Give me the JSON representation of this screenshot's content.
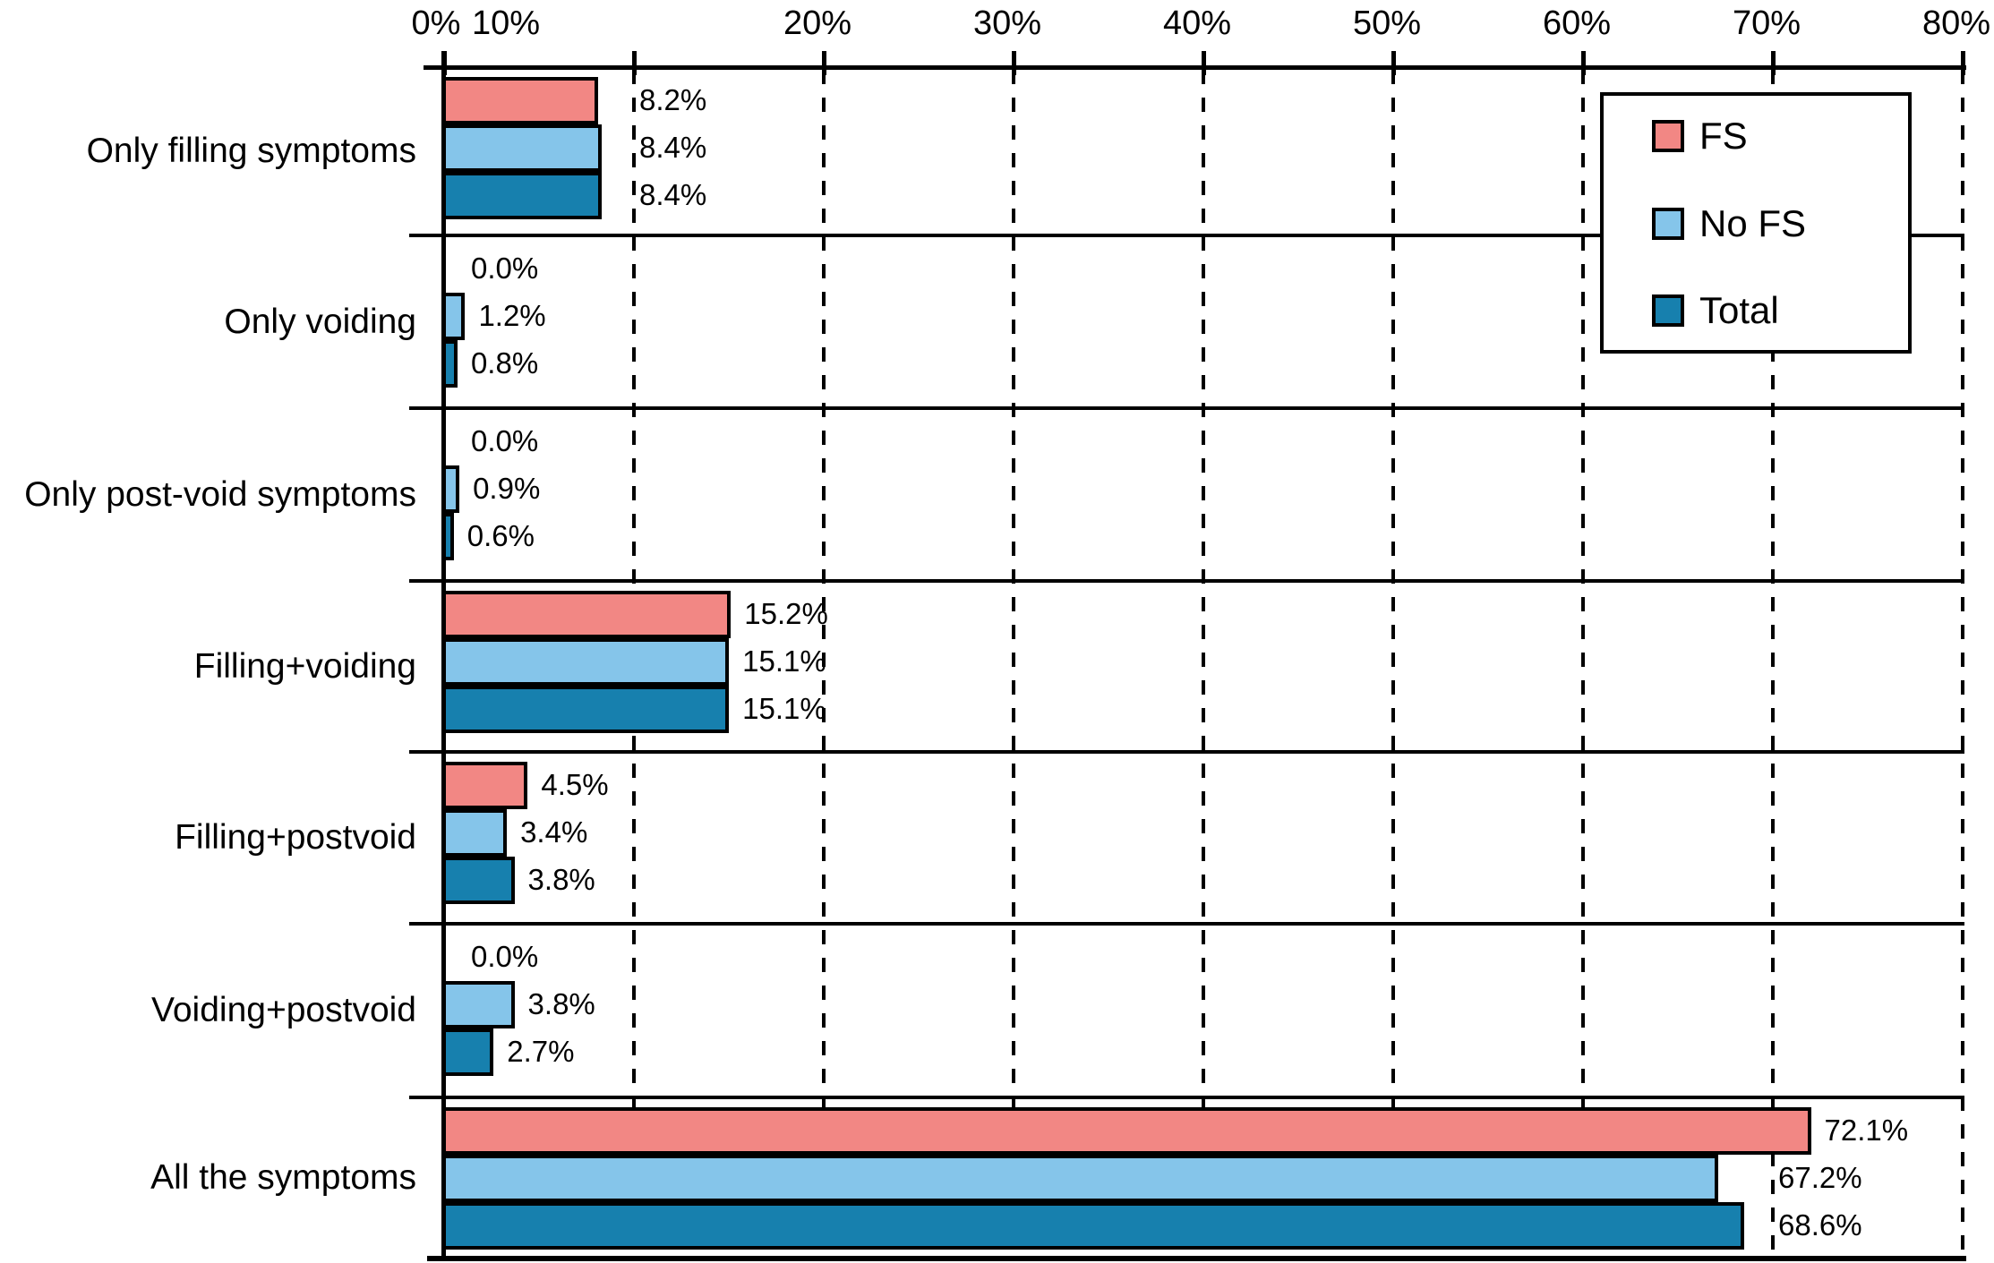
{
  "chart_data": {
    "type": "bar",
    "orientation": "horizontal",
    "title": "",
    "categories": [
      "Only filling symptoms",
      "Only voiding",
      "Only post-void symptoms",
      "Filling+voiding",
      "Filling+postvoid",
      "Voiding+postvoid",
      "All the symptoms"
    ],
    "series": [
      {
        "name": "FS",
        "color": "#F28784",
        "values": [
          8.2,
          0.0,
          0.0,
          15.2,
          4.5,
          0.0,
          72.1
        ]
      },
      {
        "name": "No FS",
        "color": "#85C5EA",
        "values": [
          8.4,
          1.2,
          0.9,
          15.1,
          3.4,
          3.8,
          67.2
        ]
      },
      {
        "name": "Total",
        "color": "#1780AE",
        "values": [
          8.4,
          0.8,
          0.6,
          15.1,
          3.8,
          2.7,
          68.6
        ]
      }
    ],
    "value_labels": [
      [
        "8.2%",
        "0.0%",
        "0.0%",
        "15.2%",
        "4.5%",
        "0.0%",
        "72.1%"
      ],
      [
        "8.4%",
        "1.2%",
        "0.9%",
        "15.1%",
        "3.4%",
        "3.8%",
        "67.2%"
      ],
      [
        "8.4%",
        "0.8%",
        "0.6%",
        "15.1%",
        "3.8%",
        "2.7%",
        "68.6%"
      ]
    ],
    "xlim": [
      0,
      80
    ],
    "x_tick_values": [
      0,
      10,
      20,
      30,
      40,
      50,
      60,
      70,
      80
    ],
    "x_tick_labels": [
      "0%",
      "10%",
      "20%",
      "30%",
      "40%",
      "50%",
      "60%",
      "70%",
      "80%"
    ],
    "x_axis_position": "top",
    "grid": "dashed-vertical",
    "bar_outline_color": "#000000",
    "legend": {
      "position": "top-right",
      "entries": [
        "FS",
        "No FS",
        "Total"
      ]
    }
  }
}
